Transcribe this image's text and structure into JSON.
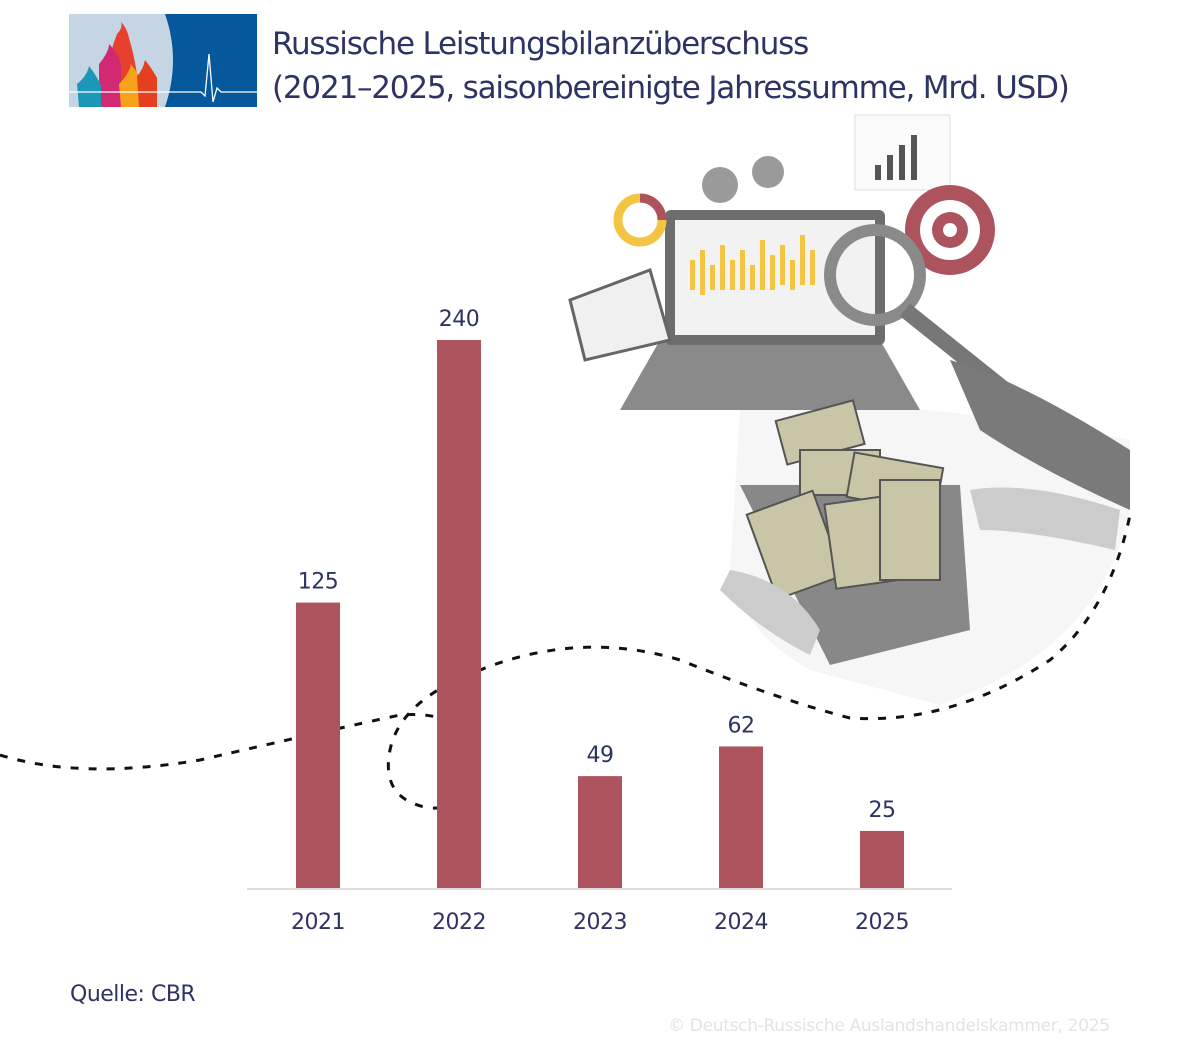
{
  "title_line1": "Russische Leistungsbilanzüberschuss",
  "title_line2": "(2021–2025, saisonbereinigte Jahressumme, Mrd. USD)",
  "source": "Quelle: CBR",
  "copyright": "© Deutsch-Russische Auslandshandelskammer, 2025",
  "colors": {
    "bar": "#ad535e",
    "text": "#2d3363",
    "logo_blue": "#05589b",
    "logo_light": "#c5d5e4"
  },
  "chart_data": {
    "type": "bar",
    "categories": [
      "2021",
      "2022",
      "2023",
      "2024",
      "2025"
    ],
    "values": [
      125,
      240,
      49,
      62,
      25
    ],
    "data_labels": [
      "125",
      "240",
      "49",
      "62",
      "25"
    ],
    "ylim": [
      0,
      240
    ],
    "grid": false,
    "xlabel": "",
    "ylabel": ""
  }
}
